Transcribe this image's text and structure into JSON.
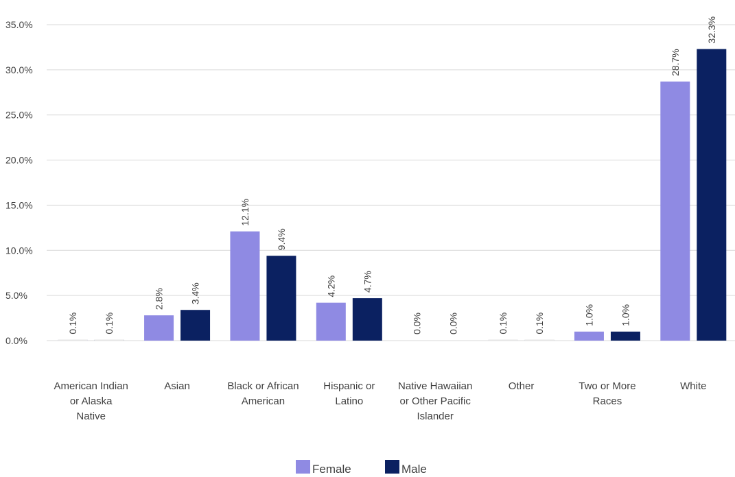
{
  "chart_data": {
    "type": "bar",
    "title": "",
    "xlabel": "",
    "ylabel": "",
    "ylim": [
      0,
      35
    ],
    "yticks": [
      0,
      5,
      10,
      15,
      20,
      25,
      30,
      35
    ],
    "ytick_labels": [
      "0.0%",
      "5.0%",
      "10.0%",
      "15.0%",
      "20.0%",
      "25.0%",
      "30.0%",
      "35.0%"
    ],
    "grid": true,
    "legend_position": "bottom",
    "categories": [
      [
        "American Indian",
        "or Alaska",
        "Native"
      ],
      [
        "Asian"
      ],
      [
        "Black or African",
        "American"
      ],
      [
        "Hispanic or",
        "Latino"
      ],
      [
        "Native Hawaiian",
        "or Other Pacific",
        "Islander"
      ],
      [
        "Other"
      ],
      [
        "Two or More",
        "Races"
      ],
      [
        "White"
      ]
    ],
    "series": [
      {
        "name": "Female",
        "color": "#8f8ae3",
        "values": [
          0.1,
          2.8,
          12.1,
          4.2,
          0.0,
          0.1,
          1.0,
          28.7
        ],
        "labels": [
          "0.1%",
          "2.8%",
          "12.1%",
          "4.2%",
          "0.0%",
          "0.1%",
          "1.0%",
          "28.7%"
        ]
      },
      {
        "name": "Male",
        "color": "#0b2161",
        "values": [
          0.1,
          3.4,
          9.4,
          4.7,
          0.0,
          0.1,
          1.0,
          32.3
        ],
        "labels": [
          "0.1%",
          "3.4%",
          "9.4%",
          "4.7%",
          "0.0%",
          "0.1%",
          "1.0%",
          "32.3%"
        ]
      }
    ]
  }
}
